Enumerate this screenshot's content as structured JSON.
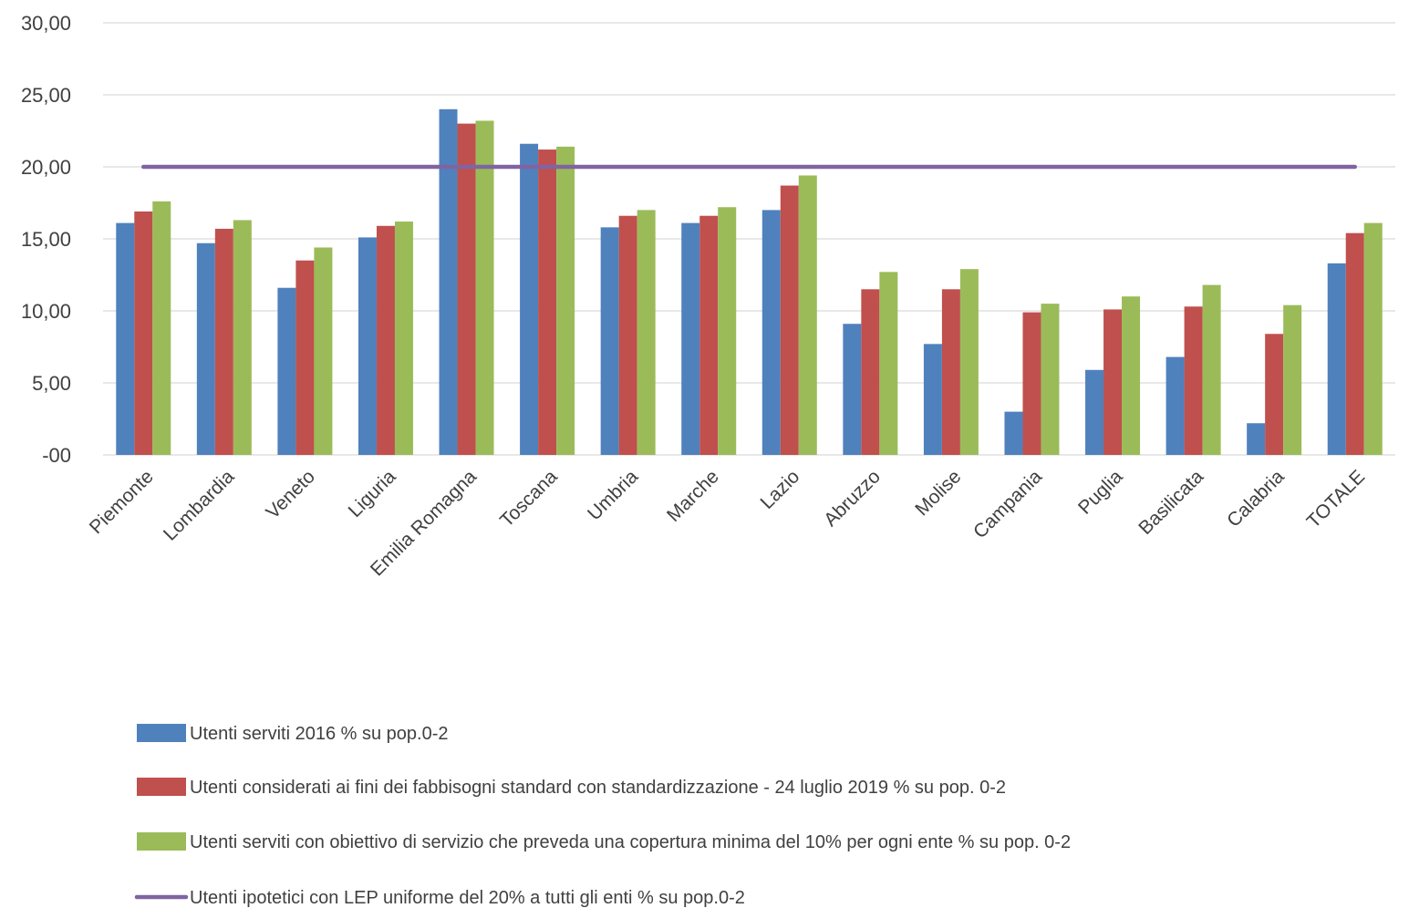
{
  "chart_data": {
    "type": "bar",
    "title": "",
    "xlabel": "",
    "ylabel": "",
    "ylim": [
      0,
      30
    ],
    "yticks": [
      0,
      5,
      10,
      15,
      20,
      25,
      30
    ],
    "ytick_labels": [
      "-00",
      "5,00",
      "10,00",
      "15,00",
      "20,00",
      "25,00",
      "30,00"
    ],
    "grid": true,
    "legend_position": "bottom",
    "categories": [
      "Piemonte",
      "Lombardia",
      "Veneto",
      "Liguria",
      "Emilia Romagna",
      "Toscana",
      "Umbria",
      "Marche",
      "Lazio",
      "Abruzzo",
      "Molise",
      "Campania",
      "Puglia",
      "Basilicata",
      "Calabria",
      "TOTALE"
    ],
    "series": [
      {
        "name": "Utenti serviti 2016 % su pop.0-2",
        "type": "bar",
        "color": "#4F81BD",
        "values": [
          16.1,
          14.7,
          11.6,
          15.1,
          24.0,
          21.6,
          15.8,
          16.1,
          17.0,
          9.1,
          7.7,
          3.0,
          5.9,
          6.8,
          2.2,
          13.3
        ]
      },
      {
        "name": "Utenti considerati ai fini dei fabbisogni standard con standardizzazione - 24 luglio 2019  % su pop. 0-2",
        "type": "bar",
        "color": "#C0504D",
        "values": [
          16.9,
          15.7,
          13.5,
          15.9,
          23.0,
          21.2,
          16.6,
          16.6,
          18.7,
          11.5,
          11.5,
          9.9,
          10.1,
          10.3,
          8.4,
          15.4
        ]
      },
      {
        "name": "Utenti serviti con obiettivo di servizio che preveda una copertura minima del 10% per ogni ente  % su pop. 0-2",
        "type": "bar",
        "color": "#9BBB59",
        "values": [
          17.6,
          16.3,
          14.4,
          16.2,
          23.2,
          21.4,
          17.0,
          17.2,
          19.4,
          12.7,
          12.9,
          10.5,
          11.0,
          11.8,
          10.4,
          16.1
        ]
      },
      {
        "name": "Utenti ipotetici con LEP uniforme del 20% a tutti gli enti % su pop.0-2",
        "type": "line",
        "color": "#8064A2",
        "values": [
          20,
          20,
          20,
          20,
          20,
          20,
          20,
          20,
          20,
          20,
          20,
          20,
          20,
          20,
          20,
          20
        ]
      }
    ]
  }
}
